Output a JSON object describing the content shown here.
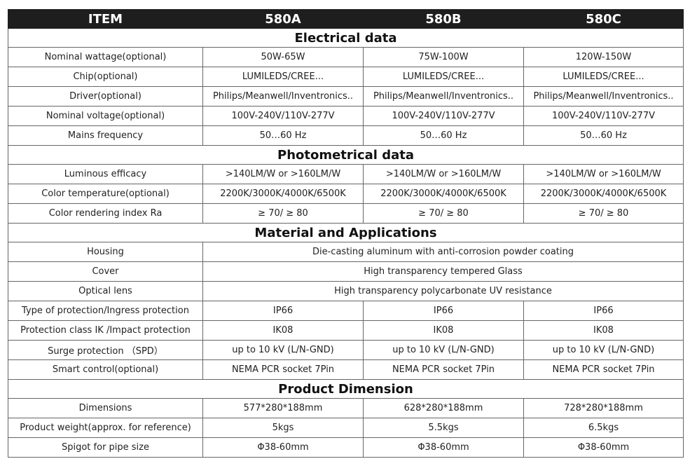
{
  "header": {
    "item": "ITEM",
    "a": "580A",
    "b": "580B",
    "c": "580C"
  },
  "sections": {
    "electrical": "Electrical data",
    "photometrical": "Photometrical data",
    "material": "Material and Applications",
    "dimension": "Product Dimension"
  },
  "rows": {
    "wattage": {
      "label": "Nominal wattage(optional)",
      "a": "50W-65W",
      "b": "75W-100W",
      "c": "120W-150W"
    },
    "chip": {
      "label": "Chip(optional)",
      "a": "LUMILEDS/CREE...",
      "b": "LUMILEDS/CREE...",
      "c": "LUMILEDS/CREE..."
    },
    "driver": {
      "label": "Driver(optional)",
      "a": "Philips/Meanwell/Inventronics..",
      "b": "Philips/Meanwell/Inventronics..",
      "c": "Philips/Meanwell/Inventronics.."
    },
    "voltage": {
      "label": "Nominal voltage(optional)",
      "a": "100V-240V/110V-277V",
      "b": "100V-240V/110V-277V",
      "c": "100V-240V/110V-277V"
    },
    "frequency": {
      "label": "Mains frequency",
      "a": "50…60 Hz",
      "b": "50…60 Hz",
      "c": "50…60 Hz"
    },
    "efficacy": {
      "label": "Luminous efficacy",
      "a": ">140LM/W or >160LM/W",
      "b": ">140LM/W or >160LM/W",
      "c": ">140LM/W or >160LM/W"
    },
    "color_temp": {
      "label": "Color temperature(optional)",
      "a": "2200K/3000K/4000K/6500K",
      "b": "2200K/3000K/4000K/6500K",
      "c": "2200K/3000K/4000K/6500K"
    },
    "cri": {
      "label": "Color rendering index Ra",
      "a": "≥ 70/ ≥ 80",
      "b": "≥ 70/ ≥ 80",
      "c": "≥ 70/ ≥ 80"
    },
    "housing": {
      "label": "Housing",
      "value": "Die-casting aluminum with anti-corrosion powder coating"
    },
    "cover": {
      "label": "Cover",
      "value": "High transparency tempered Glass"
    },
    "lens": {
      "label": "Optical lens",
      "value": "High transparency polycarbonate UV resistance"
    },
    "ip": {
      "label": "Type of protection/Ingress protection",
      "a": "IP66",
      "b": "IP66",
      "c": "IP66"
    },
    "ik": {
      "label": "Protection class IK /Impact protection",
      "a": "IK08",
      "b": "IK08",
      "c": "IK08"
    },
    "surge": {
      "label": "Surge protection （SPD）",
      "a": "up to 10 kV (L/N-GND)",
      "b": "up to 10 kV (L/N-GND)",
      "c": "up to 10 kV (L/N-GND)"
    },
    "smart": {
      "label": "Smart control(optional)",
      "a": "NEMA PCR socket 7Pin",
      "b": "NEMA PCR socket 7Pin",
      "c": "NEMA PCR socket 7Pin"
    },
    "dimensions": {
      "label": "Dimensions",
      "a": "577*280*188mm",
      "b": "628*280*188mm",
      "c": "728*280*188mm"
    },
    "weight": {
      "label": "Product weight(approx. for reference)",
      "a": "5kgs",
      "b": "5.5kgs",
      "c": "6.5kgs"
    },
    "spigot": {
      "label": "Spigot for pipe size",
      "a": "Φ38-60mm",
      "b": "Φ38-60mm",
      "c": "Φ38-60mm"
    }
  }
}
